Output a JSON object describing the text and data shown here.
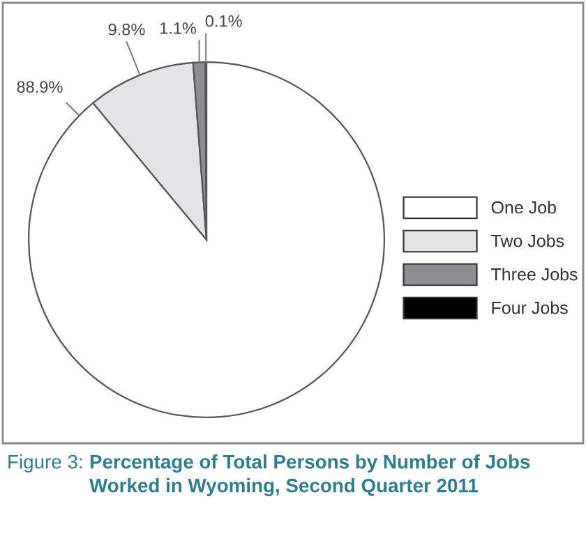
{
  "chart_data": {
    "type": "pie",
    "title": "Percentage of Total Persons by Number of Jobs Worked in Wyoming, Second Quarter 2011",
    "annotations": [
      "Figure 3:"
    ],
    "categories": [
      "One Job",
      "Two Jobs",
      "Three Jobs",
      "Four Jobs"
    ],
    "values": [
      88.9,
      9.8,
      1.1,
      0.1
    ],
    "colors": [
      "#ffffff",
      "#e3e4e5",
      "#8c8e91",
      "#000000"
    ],
    "value_labels": [
      "88.9%",
      "9.8%",
      "1.1%",
      "0.1%"
    ],
    "legend": "right"
  }
}
